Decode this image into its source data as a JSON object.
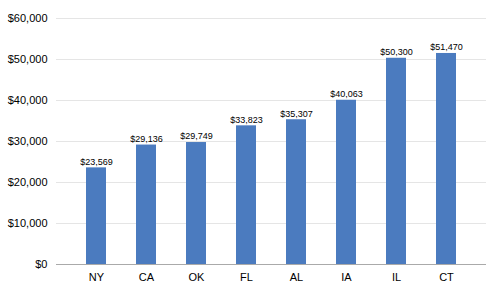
{
  "chart_data": {
    "type": "bar",
    "categories": [
      "NY",
      "CA",
      "OK",
      "FL",
      "AL",
      "IA",
      "IL",
      "CT"
    ],
    "values": [
      23569,
      29136,
      29749,
      33823,
      35307,
      40063,
      50300,
      51470
    ],
    "value_labels": [
      "$23,569",
      "$29,136",
      "$29,749",
      "$33,823",
      "$35,307",
      "$40,063",
      "$50,300",
      "$51,470"
    ],
    "data_labels": true,
    "color": "#4b7bbf",
    "ylim": [
      0,
      60000
    ],
    "yticks": [
      {
        "value": 0,
        "label": "$0"
      },
      {
        "value": 10000,
        "label": "$10,000"
      },
      {
        "value": 20000,
        "label": "$20,000"
      },
      {
        "value": 30000,
        "label": "$30,000"
      },
      {
        "value": 40000,
        "label": "$40,000"
      },
      {
        "value": 50000,
        "label": "$50,000"
      },
      {
        "value": 60000,
        "label": "$60,000"
      }
    ],
    "grid": true
  }
}
